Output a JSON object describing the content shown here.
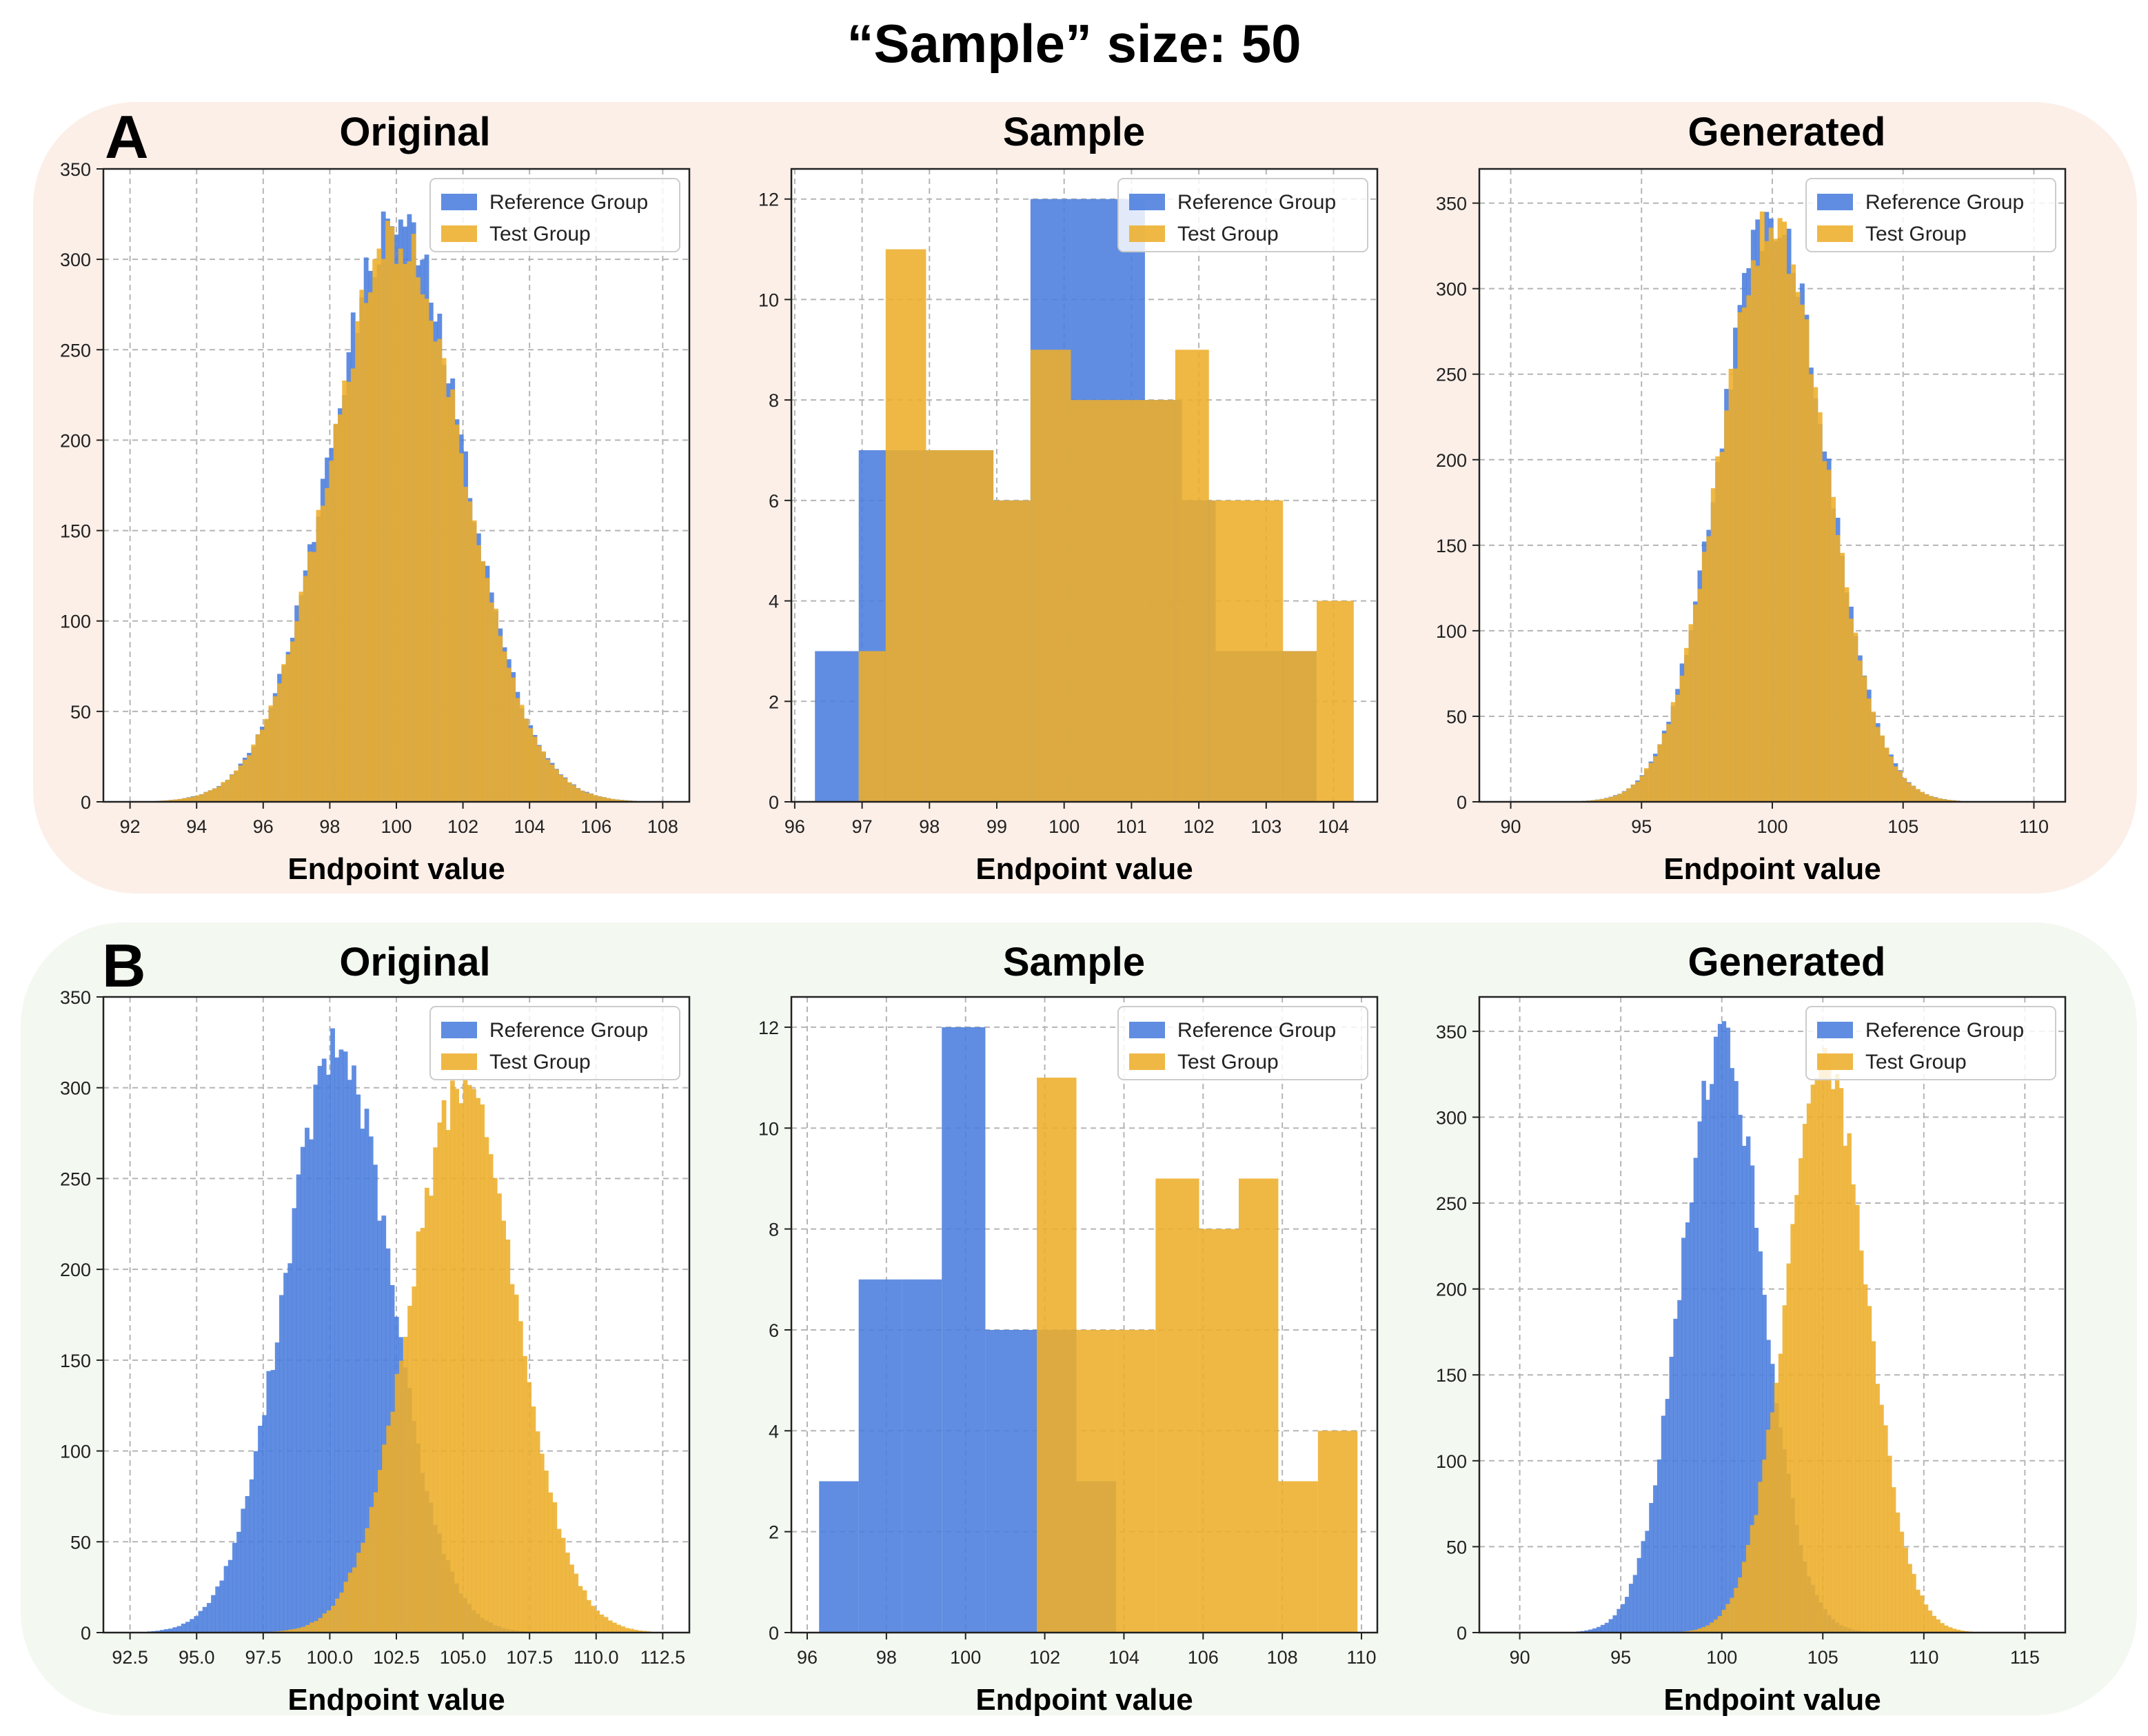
{
  "title": "“Sample” size: 50",
  "colors": {
    "reference": "#4a7ddd",
    "test": "#edae2a",
    "grid": "#b5b5b5",
    "panel_a_bg": "#fcefe8",
    "panel_b_bg": "#f3f8f1"
  },
  "panels": [
    {
      "letter": "A",
      "charts": [
        {
          "subtitle": "Original",
          "kind": "density",
          "xlabel": "Endpoint value",
          "legend": [
            "Reference Group",
            "Test Group"
          ],
          "xlim": [
            91.2,
            108.8
          ],
          "ylim": [
            0,
            350
          ],
          "xticks": [
            "92",
            "94",
            "96",
            "98",
            "100",
            "102",
            "104",
            "106",
            "108"
          ],
          "yticks": [
            "0",
            "50",
            "100",
            "150",
            "200",
            "250",
            "300",
            "350"
          ],
          "reference": {
            "mean": 100,
            "sd": 2,
            "peak": 320,
            "lo": 92,
            "hi": 108,
            "binw": 0.13
          },
          "test": {
            "mean": 100,
            "sd": 2,
            "peak": 310,
            "lo": 92,
            "hi": 108,
            "binw": 0.13
          }
        },
        {
          "subtitle": "Sample",
          "kind": "bins",
          "xlabel": "Endpoint value",
          "legend": [
            "Reference Group",
            "Test Group"
          ],
          "xlim": [
            95.95,
            104.65
          ],
          "ylim": [
            0,
            12.6
          ],
          "xticks": [
            "96",
            "97",
            "98",
            "99",
            "100",
            "101",
            "102",
            "103",
            "104"
          ],
          "yticks": [
            "0",
            "2",
            "4",
            "6",
            "8",
            "10",
            "12"
          ],
          "reference": {
            "edges": [
              96.3,
              96.95,
              97.95,
              98.95,
              99.5,
              100.1,
              101.2,
              101.75,
              102.25,
              103.75
            ],
            "counts": [
              3,
              7,
              7,
              6,
              12,
              12,
              8,
              6,
              3
            ]
          },
          "test": {
            "edges": [
              96.95,
              97.35,
              97.95,
              98.95,
              99.5,
              100.1,
              101.15,
              101.65,
              102.15,
              103.25,
              103.75,
              104.3
            ],
            "counts": [
              3,
              11,
              7,
              6,
              9,
              8,
              8,
              9,
              6,
              3,
              4
            ]
          }
        },
        {
          "subtitle": "Generated",
          "kind": "density",
          "xlabel": "Endpoint value",
          "legend": [
            "Reference Group",
            "Test Group"
          ],
          "xlim": [
            88.8,
            111.2
          ],
          "ylim": [
            0,
            370
          ],
          "xticks": [
            "90",
            "95",
            "100",
            "105",
            "110"
          ],
          "yticks": [
            "0",
            "50",
            "100",
            "150",
            "200",
            "250",
            "300",
            "350"
          ],
          "reference": {
            "mean": 100,
            "sd": 2,
            "peak": 345,
            "lo": 90,
            "hi": 109,
            "binw": 0.17
          },
          "test": {
            "mean": 100,
            "sd": 2,
            "peak": 340,
            "lo": 90,
            "hi": 109,
            "binw": 0.17
          }
        }
      ]
    },
    {
      "letter": "B",
      "charts": [
        {
          "subtitle": "Original",
          "kind": "density",
          "xlabel": "Endpoint value",
          "legend": [
            "Reference Group",
            "Test Group"
          ],
          "xlim": [
            91.5,
            113.5
          ],
          "ylim": [
            0,
            350
          ],
          "xticks": [
            "92.5",
            "95.0",
            "97.5",
            "100.0",
            "102.5",
            "105.0",
            "107.5",
            "110.0",
            "112.5"
          ],
          "yticks": [
            "0",
            "50",
            "100",
            "150",
            "200",
            "250",
            "300",
            "350"
          ],
          "reference": {
            "mean": 100.3,
            "sd": 2,
            "peak": 320,
            "lo": 92.5,
            "hi": 108,
            "binw": 0.16
          },
          "test": {
            "mean": 105,
            "sd": 2,
            "peak": 300,
            "lo": 97,
            "hi": 112,
            "binw": 0.16
          }
        },
        {
          "subtitle": "Sample",
          "kind": "bins",
          "xlabel": "Endpoint value",
          "legend": [
            "Reference Group",
            "Test Group"
          ],
          "xlim": [
            95.6,
            110.4
          ],
          "ylim": [
            0,
            12.6
          ],
          "xticks": [
            "96",
            "98",
            "100",
            "102",
            "104",
            "106",
            "108",
            "110"
          ],
          "yticks": [
            "0",
            "2",
            "4",
            "6",
            "8",
            "10",
            "12"
          ],
          "reference": {
            "edges": [
              96.3,
              97.3,
              98.4,
              99.4,
              100.5,
              101.8,
              102.8,
              103.8
            ],
            "counts": [
              3,
              7,
              7,
              12,
              6,
              6,
              3
            ]
          },
          "test": {
            "edges": [
              101.8,
              102.8,
              103.8,
              104.8,
              105.9,
              106.9,
              107.9,
              108.9,
              109.9
            ],
            "counts": [
              11,
              6,
              6,
              9,
              8,
              9,
              3,
              4
            ]
          }
        },
        {
          "subtitle": "Generated",
          "kind": "density",
          "xlabel": "Endpoint value",
          "legend": [
            "Reference Group",
            "Test Group"
          ],
          "xlim": [
            88,
            117
          ],
          "ylim": [
            0,
            370
          ],
          "xticks": [
            "90",
            "95",
            "100",
            "105",
            "110",
            "115"
          ],
          "yticks": [
            "0",
            "50",
            "100",
            "150",
            "200",
            "250",
            "300",
            "350"
          ],
          "reference": {
            "mean": 100,
            "sd": 2,
            "peak": 345,
            "lo": 90,
            "hi": 109,
            "binw": 0.2
          },
          "test": {
            "mean": 105.2,
            "sd": 2,
            "peak": 330,
            "lo": 96,
            "hi": 114,
            "binw": 0.2
          }
        }
      ]
    }
  ]
}
